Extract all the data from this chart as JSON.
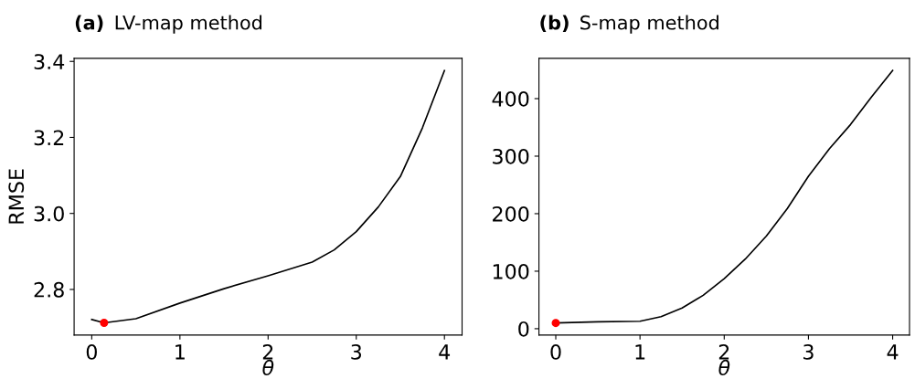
{
  "chart_data": [
    {
      "type": "line",
      "title": "LV-map method",
      "annotations": [
        "(a)"
      ],
      "xlabel": "θ",
      "ylabel": "RMSE",
      "xlim": [
        -0.2,
        4.2
      ],
      "xticks": [
        0,
        1,
        2,
        3,
        4
      ],
      "ylim": [
        2.68,
        3.408
      ],
      "yticks": [
        {
          "value": 2.8,
          "label": "2.8"
        },
        {
          "value": 3.0,
          "label": "3.0"
        },
        {
          "value": 3.2,
          "label": "3.2"
        },
        {
          "value": 3.4,
          "label": "3.4"
        }
      ],
      "grid": false,
      "legend": false,
      "series": [
        {
          "color": "#000000",
          "marker": "none",
          "x": [
            0,
            0.14,
            0.5,
            1.0,
            1.5,
            2.0,
            2.5,
            2.75,
            3.0,
            3.25,
            3.5,
            3.75,
            4.0
          ],
          "values": [
            2.721,
            2.712,
            2.723,
            2.764,
            2.802,
            2.836,
            2.872,
            2.904,
            2.952,
            3.017,
            3.097,
            3.225,
            3.376
          ]
        },
        {
          "type": "scatter",
          "color": "#ff0000",
          "marker": "circle",
          "x": [
            0.14
          ],
          "values": [
            2.712
          ]
        }
      ]
    },
    {
      "type": "line",
      "title": "S-map method",
      "annotations": [
        "(b)"
      ],
      "xlabel": "θ",
      "xlim": [
        -0.2,
        4.2
      ],
      "xticks": [
        0,
        1,
        2,
        3,
        4
      ],
      "ylim": [
        -11,
        470
      ],
      "yticks": [
        0,
        100,
        200,
        300,
        400
      ],
      "grid": false,
      "legend": false,
      "series": [
        {
          "color": "#000000",
          "marker": "none",
          "x": [
            0,
            0.5,
            1.0,
            1.25,
            1.5,
            1.75,
            2.0,
            2.25,
            2.5,
            2.75,
            3.0,
            3.25,
            3.5,
            3.75,
            4.0
          ],
          "values": [
            10,
            12,
            13,
            21,
            36,
            58,
            87,
            121,
            161,
            209,
            265,
            313,
            355,
            403,
            449
          ]
        },
        {
          "type": "scatter",
          "color": "#ff0000",
          "marker": "circle",
          "x": [
            0
          ],
          "values": [
            10
          ]
        }
      ]
    }
  ]
}
